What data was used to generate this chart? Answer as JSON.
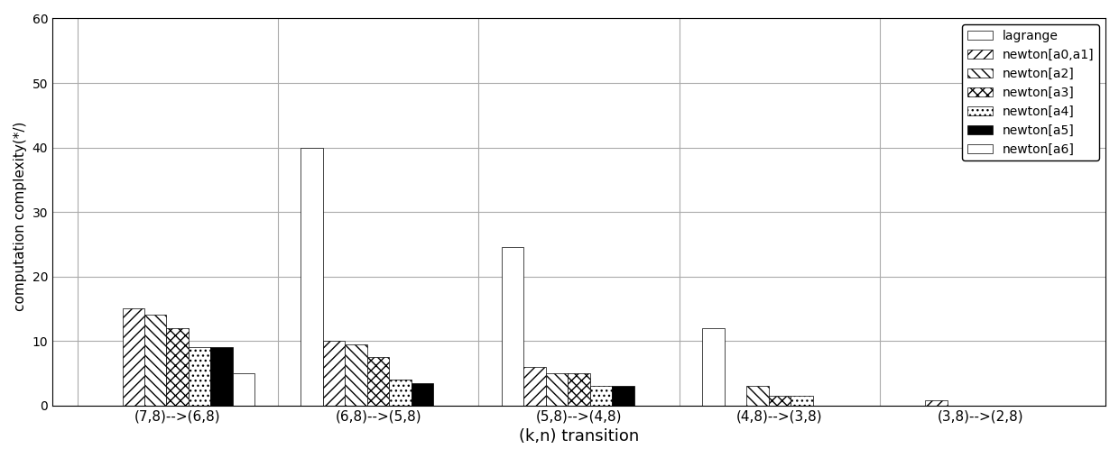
{
  "categories": [
    "(7,8)-->(6,8)",
    "(6,8)-->(5,8)",
    "(5,8)-->(4,8)",
    "(4,8)-->(3,8)",
    "(3,8)-->(2,8)"
  ],
  "series": {
    "lagrange": [
      0,
      40,
      24.5,
      12,
      0
    ],
    "newton_a0a1": [
      15,
      10,
      6,
      0,
      0.8
    ],
    "newton_a2": [
      14,
      9.5,
      5,
      3,
      0
    ],
    "newton_a3": [
      12,
      7.5,
      5,
      1.5,
      0
    ],
    "newton_a4": [
      9,
      4,
      3,
      1.5,
      0
    ],
    "newton_a5": [
      9,
      3.5,
      3,
      0,
      0
    ],
    "newton_a6": [
      5,
      0,
      0,
      0,
      0
    ]
  },
  "legend_labels": [
    "lagrange",
    "newton[a0,a1]",
    "newton[a2]",
    "newton[a3]",
    "newton[a4]",
    "newton[a5]",
    "newton[a6]"
  ],
  "xlabel": "(k,n) transition",
  "ylabel": "computation complexity(*/)  ",
  "ylim": [
    0,
    60
  ],
  "yticks": [
    0,
    10,
    20,
    30,
    40,
    50,
    60
  ],
  "bar_width": 0.11,
  "figure_facecolor": "#ffffff",
  "grid_color": "#aaaaaa"
}
